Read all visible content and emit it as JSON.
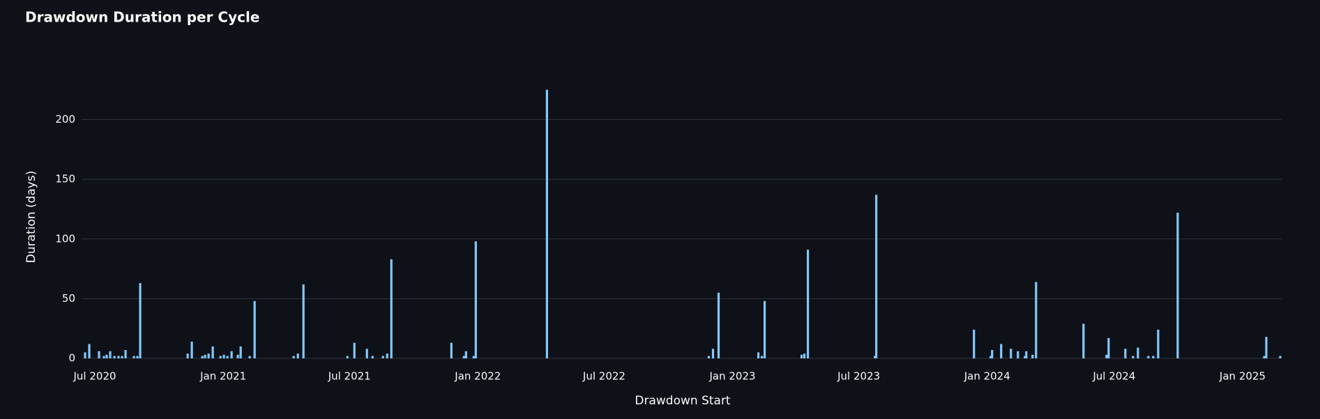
{
  "chart_data": {
    "type": "bar",
    "title": "Drawdown Duration per Cycle",
    "xlabel": "Drawdown Start",
    "ylabel": "Duration (days)",
    "color": "#83c9ff",
    "grid": true,
    "x": [
      "2020-06-17",
      "2020-06-23",
      "2020-07-07",
      "2020-07-14",
      "2020-07-18",
      "2020-07-23",
      "2020-07-29",
      "2020-08-04",
      "2020-08-09",
      "2020-08-14",
      "2020-08-26",
      "2020-08-31",
      "2020-09-04",
      "2020-11-11",
      "2020-11-17",
      "2020-12-02",
      "2020-12-06",
      "2020-12-11",
      "2020-12-17",
      "2020-12-28",
      "2021-01-02",
      "2021-01-07",
      "2021-01-13",
      "2021-01-22",
      "2021-01-26",
      "2021-02-08",
      "2021-02-15",
      "2021-04-12",
      "2021-04-18",
      "2021-04-26",
      "2021-06-28",
      "2021-07-08",
      "2021-07-26",
      "2021-08-03",
      "2021-08-18",
      "2021-08-24",
      "2021-08-30",
      "2021-11-24",
      "2021-12-12",
      "2021-12-15",
      "2021-12-26",
      "2021-12-29",
      "2022-04-10",
      "2022-11-28",
      "2022-12-04",
      "2022-12-12",
      "2023-02-07",
      "2023-02-12",
      "2023-02-16",
      "2023-04-10",
      "2023-04-14",
      "2023-04-19",
      "2023-07-24",
      "2023-07-26",
      "2023-12-13",
      "2024-01-06",
      "2024-01-08",
      "2024-01-21",
      "2024-02-04",
      "2024-02-14",
      "2024-02-24",
      "2024-02-26",
      "2024-03-06",
      "2024-03-11",
      "2024-05-18",
      "2024-06-20",
      "2024-06-23",
      "2024-07-17",
      "2024-07-28",
      "2024-08-04",
      "2024-08-19",
      "2024-08-26",
      "2024-09-02",
      "2024-09-30",
      "2025-02-01",
      "2025-02-04",
      "2025-02-24"
    ],
    "values": [
      5,
      12,
      6,
      2,
      3,
      6,
      2,
      2,
      2,
      7,
      2,
      2,
      63,
      4,
      14,
      2,
      3,
      4,
      10,
      2,
      3,
      2,
      6,
      3,
      10,
      2,
      48,
      2,
      4,
      62,
      2,
      13,
      8,
      2,
      2,
      4,
      83,
      13,
      2,
      6,
      2,
      98,
      225,
      2,
      8,
      55,
      5,
      2,
      48,
      3,
      4,
      91,
      2,
      137,
      24,
      2,
      7,
      12,
      8,
      6,
      2,
      6,
      3,
      64,
      29,
      3,
      17,
      8,
      2,
      9,
      2,
      2,
      24,
      122,
      2,
      18,
      2
    ],
    "xlim": [
      "2020-06-12",
      "2025-02-26"
    ],
    "xticks": [
      {
        "value": "2020-07-01",
        "label": "Jul 2020"
      },
      {
        "value": "2021-01-01",
        "label": "Jan 2021"
      },
      {
        "value": "2021-07-01",
        "label": "Jul 2021"
      },
      {
        "value": "2022-01-01",
        "label": "Jan 2022"
      },
      {
        "value": "2022-07-01",
        "label": "Jul 2022"
      },
      {
        "value": "2023-01-01",
        "label": "Jan 2023"
      },
      {
        "value": "2023-07-01",
        "label": "Jul 2023"
      },
      {
        "value": "2024-01-01",
        "label": "Jan 2024"
      },
      {
        "value": "2024-07-01",
        "label": "Jul 2024"
      },
      {
        "value": "2025-01-01",
        "label": "Jan 2025"
      }
    ],
    "ylim": [
      0,
      240
    ],
    "yticks": [
      0,
      50,
      100,
      150,
      200
    ]
  }
}
